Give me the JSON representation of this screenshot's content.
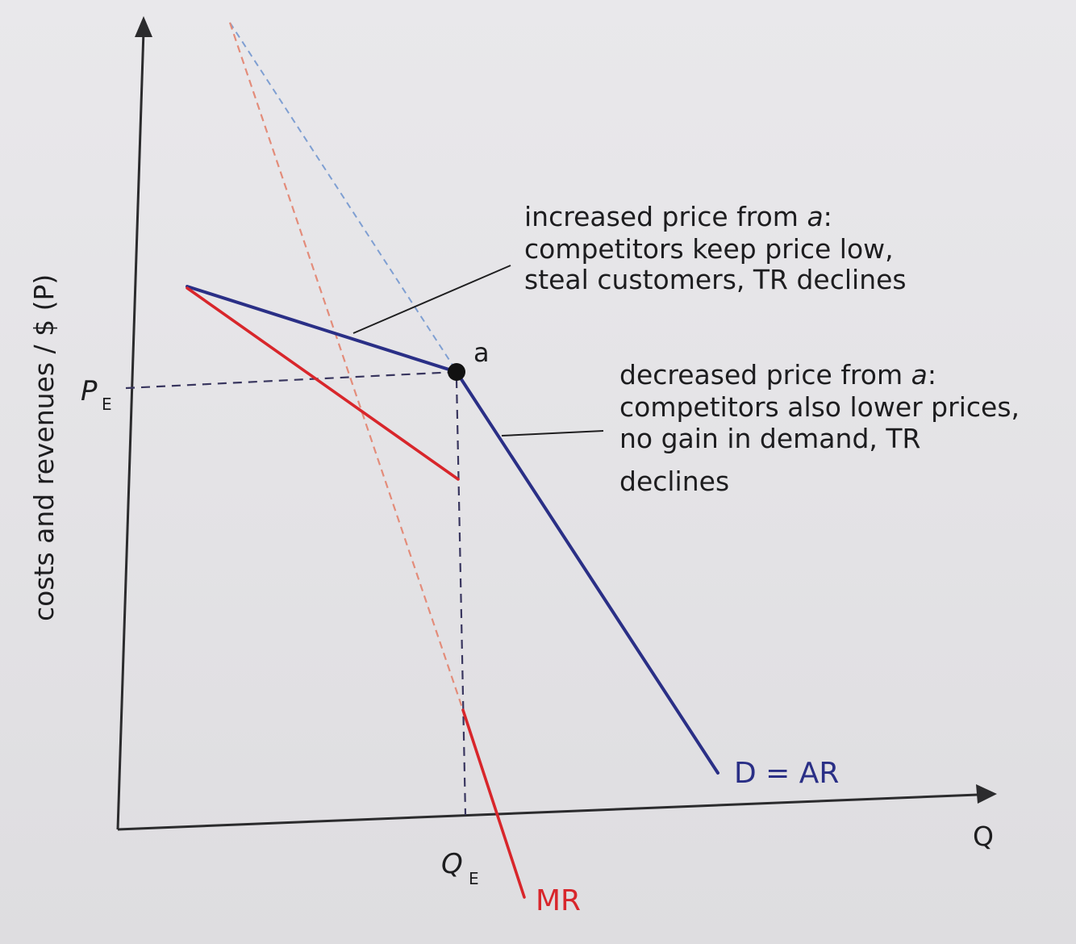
{
  "axes": {
    "y_label": "costs and revenues / $ (P)",
    "x_label": "Q"
  },
  "ticks": {
    "price": {
      "main": "P",
      "sub": "E"
    },
    "quantity": {
      "main": "Q",
      "sub": "E"
    }
  },
  "point": {
    "label": "a"
  },
  "curves": {
    "demand_label": "D = AR",
    "mr_label": "MR"
  },
  "annotations": {
    "increase": {
      "line1": "increased price from ",
      "line1_italic": "a",
      "line1_end": ":",
      "line2": "competitors keep price low,",
      "line3": "steal customers, TR declines"
    },
    "decrease": {
      "line1": "decreased price from ",
      "line1_italic": "a",
      "line1_end": ":",
      "line2": "competitors also lower prices,",
      "line3": "no gain in demand, TR",
      "line4": "declines"
    }
  },
  "colors": {
    "demand": "#2a2f86",
    "marginal_revenue": "#d8262b",
    "elastic_extension": "#7f9fd2",
    "mr_extension": "#e38c7a",
    "axis": "#2b2b2d"
  }
}
